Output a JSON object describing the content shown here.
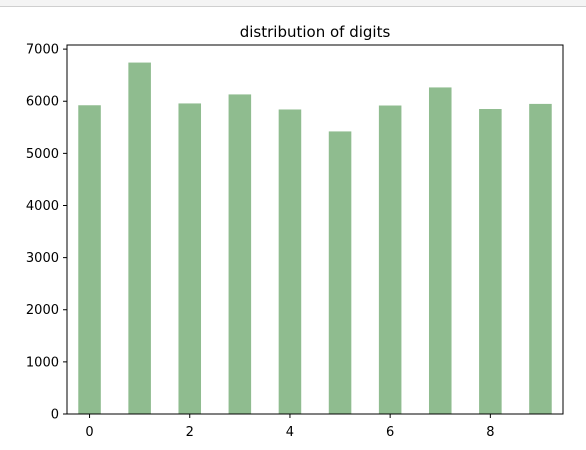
{
  "chart_data": {
    "type": "bar",
    "title": "distribution of digits",
    "xlabel": "",
    "ylabel": "",
    "categories": [
      0,
      1,
      2,
      3,
      4,
      5,
      6,
      7,
      8,
      9
    ],
    "values": [
      5923,
      6742,
      5958,
      6131,
      5842,
      5421,
      5918,
      6265,
      5851,
      5949
    ],
    "bar_color": "#8fbc8f",
    "xlim": [
      -0.45,
      9.45
    ],
    "ylim": [
      0,
      7079
    ],
    "xticks": [
      0,
      2,
      4,
      6,
      8
    ],
    "yticks": [
      0,
      1000,
      2000,
      3000,
      4000,
      5000,
      6000,
      7000
    ],
    "grid": false
  }
}
